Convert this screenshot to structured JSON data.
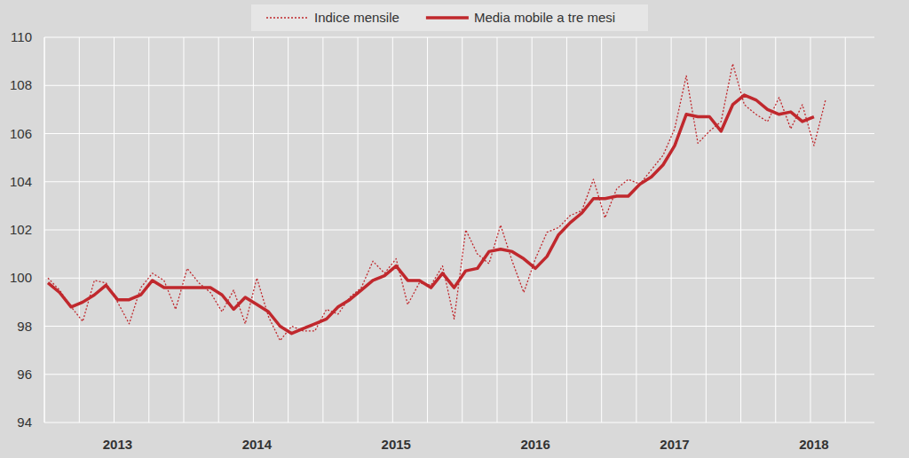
{
  "chart_data": {
    "type": "line",
    "categories": [
      null,
      null,
      null,
      null,
      null,
      null,
      "2013",
      null,
      null,
      null,
      null,
      null,
      null,
      null,
      null,
      null,
      null,
      null,
      "2014",
      null,
      null,
      null,
      null,
      null,
      null,
      null,
      null,
      null,
      null,
      null,
      "2015",
      null,
      null,
      null,
      null,
      null,
      null,
      null,
      null,
      null,
      null,
      null,
      "2016",
      null,
      null,
      null,
      null,
      null,
      null,
      null,
      null,
      null,
      null,
      null,
      "2017",
      null,
      null,
      null,
      null,
      null,
      null,
      null,
      null,
      null,
      null,
      null,
      "2018",
      null
    ],
    "series": [
      {
        "name": "Indice mensile",
        "color": "#c0282d",
        "line_style": "dotted",
        "values": [
          100.0,
          99.5,
          98.8,
          98.2,
          99.9,
          99.8,
          99.0,
          98.1,
          99.6,
          100.2,
          99.9,
          98.7,
          100.4,
          99.8,
          99.4,
          98.6,
          99.5,
          98.1,
          100.0,
          98.4,
          97.4,
          98.0,
          97.8,
          97.8,
          98.7,
          98.5,
          99.2,
          99.6,
          100.7,
          100.2,
          100.8,
          98.9,
          99.8,
          99.7,
          100.5,
          98.3,
          102.0,
          101.0,
          100.6,
          102.2,
          100.7,
          99.4,
          100.8,
          101.9,
          102.1,
          102.6,
          102.8,
          104.1,
          102.5,
          103.7,
          104.1,
          103.9,
          104.5,
          105.1,
          106.2,
          108.4,
          105.6,
          106.1,
          106.5,
          108.9,
          107.2,
          106.8,
          106.5,
          107.5,
          106.2,
          107.2,
          105.5,
          107.4
        ]
      },
      {
        "name": "Media mobile a tre mesi",
        "color": "#c0282d",
        "line_style": "solid",
        "values": [
          99.8,
          99.4,
          98.8,
          99.0,
          99.3,
          99.7,
          99.1,
          99.1,
          99.3,
          99.9,
          99.6,
          99.6,
          99.6,
          99.6,
          99.6,
          99.3,
          98.7,
          99.2,
          98.9,
          98.6,
          98.0,
          97.7,
          97.9,
          98.1,
          98.3,
          98.8,
          99.1,
          99.5,
          99.9,
          100.1,
          100.5,
          99.9,
          99.9,
          99.6,
          100.2,
          99.6,
          100.3,
          100.4,
          101.1,
          101.2,
          101.1,
          100.8,
          100.4,
          100.9,
          101.8,
          102.3,
          102.7,
          103.3,
          103.3,
          103.4,
          103.4,
          103.9,
          104.2,
          104.7,
          105.5,
          106.8,
          106.7,
          106.7,
          106.1,
          107.2,
          107.6,
          107.4,
          107.0,
          106.8,
          106.9,
          106.5,
          106.7,
          null
        ]
      }
    ],
    "ylim": [
      94,
      110
    ],
    "yticks": [
      94,
      96,
      98,
      100,
      102,
      104,
      106,
      108,
      110
    ],
    "grid": true,
    "legend": "top"
  }
}
